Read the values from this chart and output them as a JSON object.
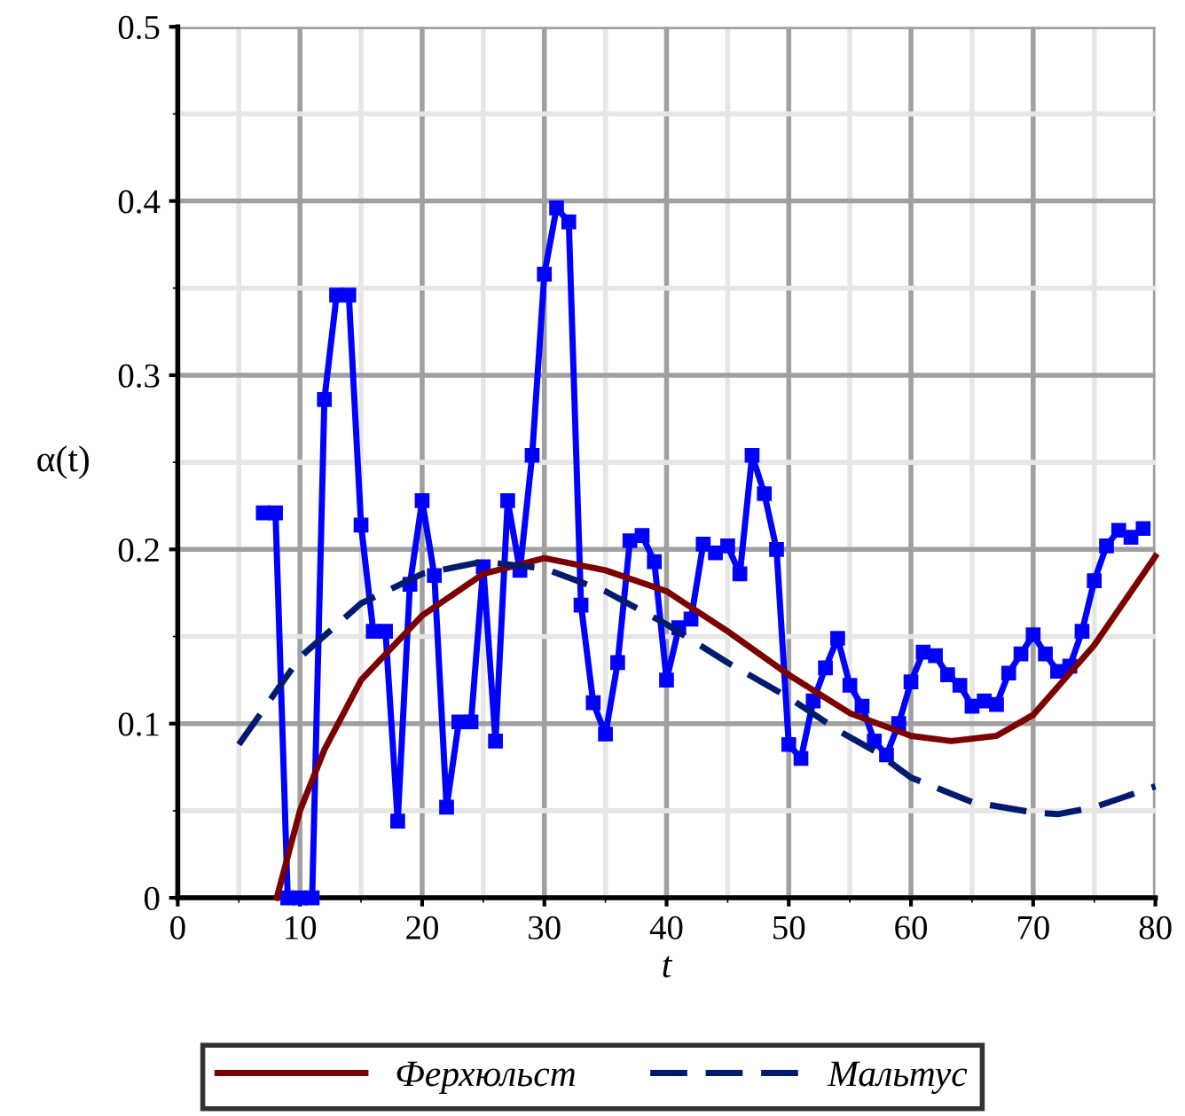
{
  "chart_data": {
    "type": "line",
    "xlabel": "t",
    "ylabel": "α(t)",
    "xlim": [
      0,
      80
    ],
    "xticks": [
      0,
      10,
      20,
      30,
      40,
      50,
      60,
      70,
      80
    ],
    "ylim": [
      0,
      0.5
    ],
    "yticks": [
      0,
      0.1,
      0.2,
      0.3,
      0.4,
      0.5
    ],
    "grid": true,
    "legend": "bottom",
    "series": [
      {
        "color": "#0000ff",
        "marker": "square",
        "line_style": "solid",
        "x": [
          7,
          8,
          9,
          10,
          11,
          12,
          13,
          14,
          15,
          16,
          17,
          18,
          19,
          20,
          21,
          22,
          23,
          24,
          25,
          26,
          27,
          28,
          29,
          30,
          31,
          32,
          33,
          34,
          35,
          36,
          37,
          38,
          39,
          40,
          41,
          42,
          43,
          44,
          45,
          46,
          47,
          48,
          49,
          50,
          51,
          52,
          53,
          54,
          55,
          56,
          57,
          58,
          59,
          60,
          61,
          62,
          63,
          64,
          65,
          66,
          67,
          68,
          69,
          70,
          71,
          72,
          73,
          74,
          75,
          76,
          77,
          78,
          79
        ],
        "values": [
          0.221,
          0.221,
          0,
          0,
          0,
          0.286,
          0.346,
          0.346,
          0.214,
          0.153,
          0.153,
          0.044,
          0.18,
          0.228,
          0.185,
          0.052,
          0.101,
          0.101,
          0.19,
          0.09,
          0.228,
          0.188,
          0.254,
          0.358,
          0.396,
          0.388,
          0.168,
          0.112,
          0.094,
          0.135,
          0.205,
          0.208,
          0.193,
          0.125,
          0.155,
          0.16,
          0.203,
          0.198,
          0.202,
          0.186,
          0.254,
          0.232,
          0.2,
          0.088,
          0.08,
          0.113,
          0.132,
          0.149,
          0.122,
          0.11,
          0.09,
          0.082,
          0.1,
          0.124,
          0.141,
          0.139,
          0.128,
          0.122,
          0.11,
          0.113,
          0.111,
          0.129,
          0.14,
          0.151,
          0.14,
          0.13,
          0.133,
          0.153,
          0.182,
          0.202,
          0.211,
          0.207,
          0.212
        ]
      },
      {
        "name": "Ферхюльст",
        "color": "#7b0000",
        "marker": "none",
        "line_style": "solid",
        "x": [
          8.1,
          10,
          12,
          15,
          20,
          25,
          30,
          35,
          40,
          45,
          50,
          55,
          60,
          63.3,
          67,
          70,
          75,
          80
        ],
        "values": [
          0,
          0.05,
          0.085,
          0.125,
          0.162,
          0.186,
          0.195,
          0.188,
          0.176,
          0.153,
          0.128,
          0.106,
          0.093,
          0.09,
          0.093,
          0.105,
          0.145,
          0.196
        ]
      },
      {
        "name": "Мальтус",
        "color": "#001a6e",
        "marker": "none",
        "line_style": "dashed",
        "x": [
          5,
          10,
          15,
          20,
          25,
          30,
          35,
          40,
          45,
          50,
          54.3,
          57.1,
          60,
          65,
          70,
          72,
          75,
          80
        ],
        "values": [
          0.088,
          0.138,
          0.169,
          0.186,
          0.193,
          0.189,
          0.176,
          0.157,
          0.135,
          0.115,
          0.095,
          0.084,
          0.069,
          0.055,
          0.049,
          0.048,
          0.052,
          0.064
        ]
      }
    ]
  }
}
